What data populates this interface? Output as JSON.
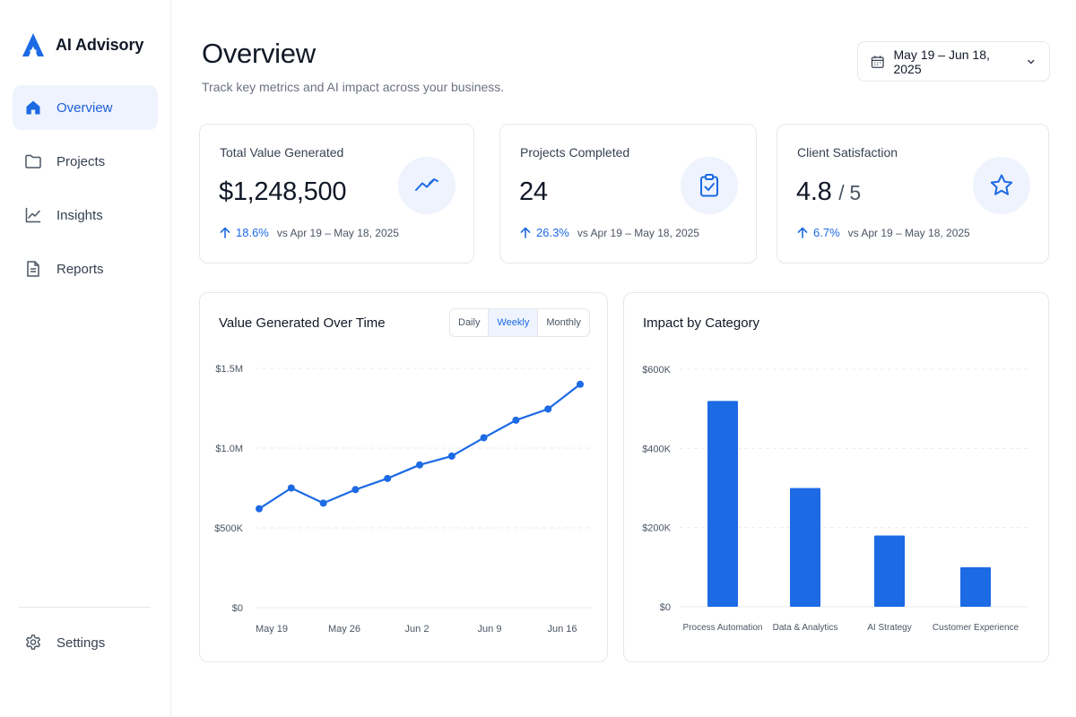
{
  "brand": {
    "name": "AI Advisory"
  },
  "sidebar": {
    "items": [
      {
        "label": "Overview",
        "icon": "home-icon",
        "active": true
      },
      {
        "label": "Projects",
        "icon": "folder-icon",
        "active": false
      },
      {
        "label": "Insights",
        "icon": "chart-line-icon",
        "active": false
      },
      {
        "label": "Reports",
        "icon": "document-icon",
        "active": false
      }
    ],
    "settings_label": "Settings"
  },
  "header": {
    "title": "Overview",
    "subtitle": "Track key metrics and AI impact across your business.",
    "date_range": "May 19 – Jun 18, 2025"
  },
  "kpis": [
    {
      "label": "Total Value Generated",
      "value": "$1,248,500",
      "delta": "18.6%",
      "comparison": "vs Apr 19 – May 18, 2025",
      "icon": "trend-up-icon"
    },
    {
      "label": "Projects Completed",
      "value": "24",
      "delta": "26.3%",
      "comparison": "vs Apr 19 – May 18, 2025",
      "icon": "clipboard-check-icon"
    },
    {
      "label": "Client Satisfaction",
      "value": "4.8",
      "value_suffix": "/ 5",
      "delta": "6.7%",
      "comparison": "vs Apr 19 – May 18, 2025",
      "icon": "star-icon"
    }
  ],
  "colors": {
    "accent": "#1d6ae5",
    "accent_bg": "#eef3fd",
    "grid": "#e8ebf0"
  },
  "line_chart": {
    "title": "Value Generated Over Time",
    "toggle": [
      "Daily",
      "Weekly",
      "Monthly"
    ],
    "active_toggle": "Weekly"
  },
  "bar_chart": {
    "title": "Impact by Category"
  },
  "chart_data": [
    {
      "type": "line",
      "title": "Value Generated Over Time",
      "x_tick_labels": [
        "May 19",
        "May 26",
        "Jun 2",
        "Jun 9",
        "Jun 16"
      ],
      "y_tick_labels": [
        "$0",
        "$500K",
        "$1.0M",
        "$1.5M"
      ],
      "ylim": [
        0,
        1500000
      ],
      "grid": true,
      "series": [
        {
          "values": [
            620000,
            750000,
            655000,
            740000,
            810000,
            895000,
            950000,
            1065000,
            1175000,
            1245000,
            1400000
          ]
        }
      ]
    },
    {
      "type": "bar",
      "title": "Impact by Category",
      "categories": [
        "Process Automation",
        "Data & Analytics",
        "AI Strategy",
        "Customer Experience"
      ],
      "values": [
        520000,
        300000,
        180000,
        100000
      ],
      "y_tick_labels": [
        "$0",
        "$200K",
        "$400K",
        "$600K"
      ],
      "ylim": [
        0,
        600000
      ],
      "grid": true
    }
  ]
}
